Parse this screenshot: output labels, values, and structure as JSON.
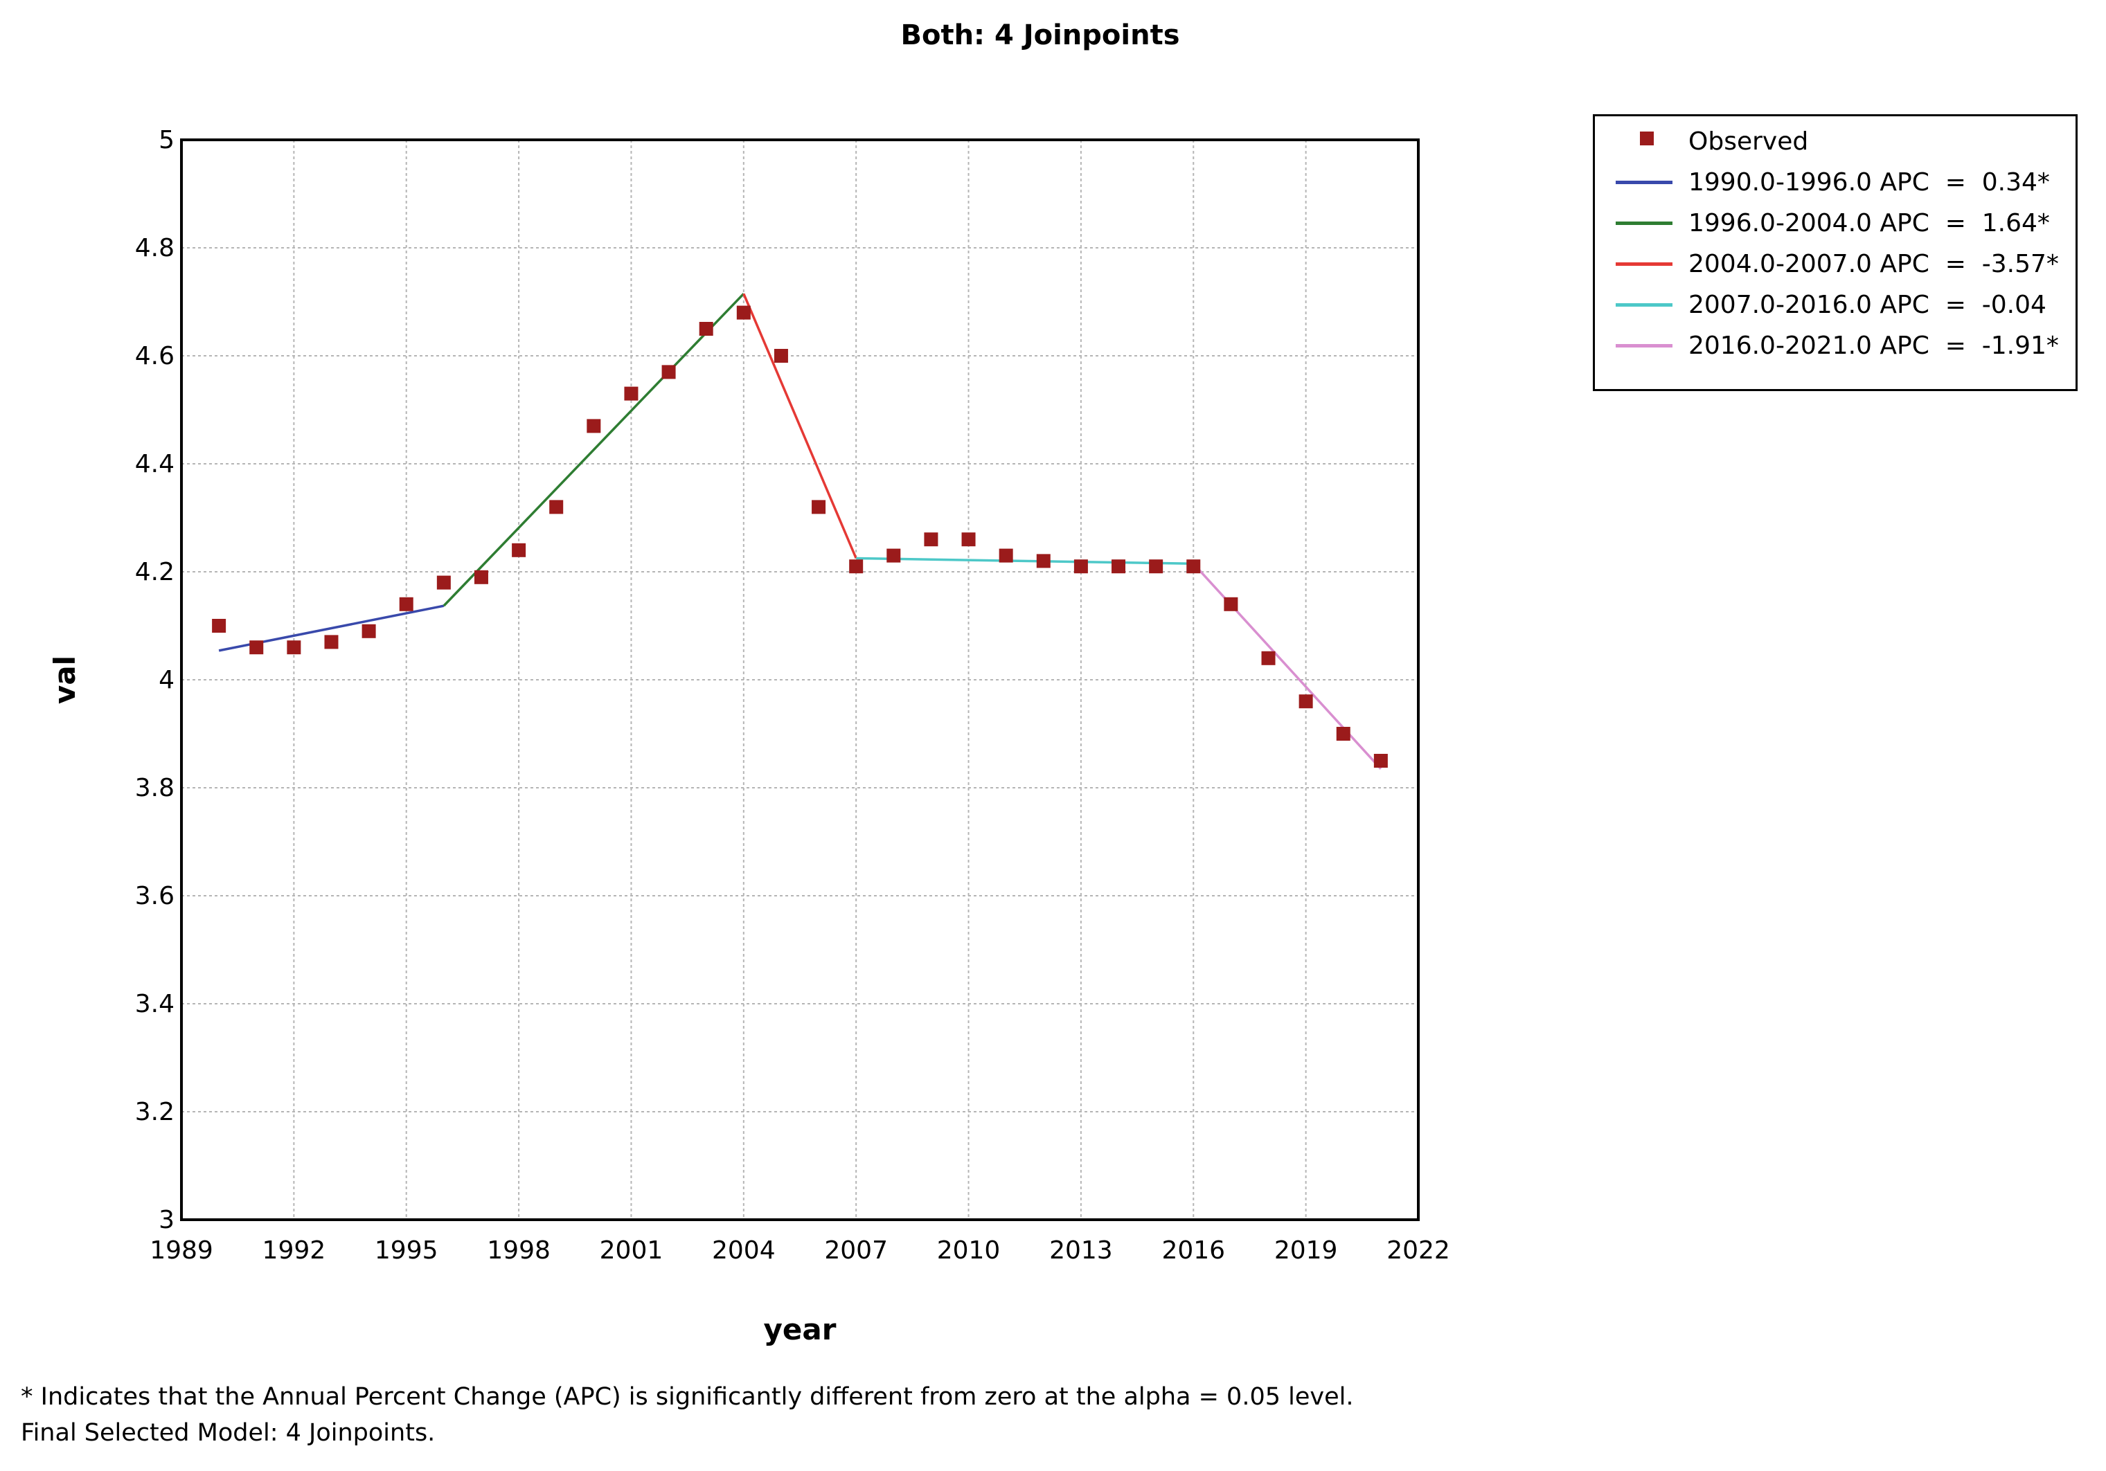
{
  "footnotes": {
    "line1": "* Indicates that the Annual Percent Change (APC) is significantly different from zero at the alpha = 0.05 level.",
    "line2": "Final Selected Model: 4 Joinpoints."
  },
  "chart_data": {
    "type": "scatter",
    "title": "Both: 4 Joinpoints",
    "xlabel": "year",
    "ylabel": "val",
    "xlim": [
      1989,
      2022
    ],
    "ylim": [
      3,
      5
    ],
    "x_ticks": [
      1989,
      1992,
      1995,
      1998,
      2001,
      2004,
      2007,
      2010,
      2013,
      2016,
      2019,
      2022
    ],
    "x_tick_labels": [
      "1989",
      "1992",
      "1995",
      "1998",
      "2001",
      "2004",
      "2007",
      "2010",
      "2013",
      "2016",
      "2019",
      "2022"
    ],
    "y_ticks": [
      3,
      3.2,
      3.4,
      3.6,
      3.8,
      4,
      4.2,
      4.4,
      4.6,
      4.8,
      5
    ],
    "y_tick_labels": [
      "3",
      "3.2",
      "3.4",
      "3.6",
      "3.8",
      "4",
      "4.2",
      "4.4",
      "4.6",
      "4.8",
      "5"
    ],
    "grid": true,
    "legend_position": "right-top",
    "observed": {
      "name": "Observed",
      "color": "#9b1b1b",
      "x": [
        1990,
        1991,
        1992,
        1993,
        1994,
        1995,
        1996,
        1997,
        1998,
        1999,
        2000,
        2001,
        2002,
        2003,
        2004,
        2005,
        2006,
        2007,
        2008,
        2009,
        2010,
        2011,
        2012,
        2013,
        2014,
        2015,
        2016,
        2017,
        2018,
        2019,
        2020,
        2021
      ],
      "y": [
        4.1,
        4.06,
        4.06,
        4.07,
        4.09,
        4.14,
        4.18,
        4.19,
        4.24,
        4.32,
        4.47,
        4.53,
        4.57,
        4.65,
        4.68,
        4.6,
        4.32,
        4.21,
        4.23,
        4.26,
        4.26,
        4.23,
        4.22,
        4.21,
        4.21,
        4.21,
        4.21,
        4.14,
        4.04,
        3.96,
        3.9,
        3.85
      ]
    },
    "segments": [
      {
        "label": "1990.0-1996.0 APC  =  0.34*",
        "color": "#3949ab",
        "x": [
          1990,
          1996
        ],
        "y": [
          4.054,
          4.137
        ]
      },
      {
        "label": "1996.0-2004.0 APC  =  1.64*",
        "color": "#2e7d32",
        "x": [
          1996,
          2004
        ],
        "y": [
          4.137,
          4.715
        ]
      },
      {
        "label": "2004.0-2007.0 APC  =  -3.57*",
        "color": "#e53935",
        "x": [
          2004,
          2007
        ],
        "y": [
          4.715,
          4.225
        ]
      },
      {
        "label": "2007.0-2016.0 APC  =  -0.04",
        "color": "#4dc8c8",
        "x": [
          2007,
          2016
        ],
        "y": [
          4.225,
          4.215
        ]
      },
      {
        "label": "2016.0-2021.0 APC  =  -1.91*",
        "color": "#d98fd0",
        "x": [
          2016,
          2021
        ],
        "y": [
          4.215,
          3.835
        ]
      }
    ],
    "legend": [
      "Observed",
      "1990.0-1996.0 APC  =  0.34*",
      "1996.0-2004.0 APC  =  1.64*",
      "2004.0-2007.0 APC  =  -3.57*",
      "2007.0-2016.0 APC  =  -0.04",
      "2016.0-2021.0 APC  =  -1.91*"
    ]
  }
}
